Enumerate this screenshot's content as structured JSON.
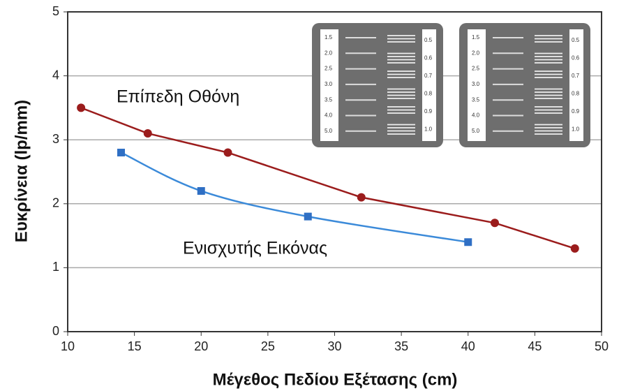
{
  "chart_data": {
    "type": "line",
    "xlabel": "Μέγεθος Πεδίου Εξέτασης (cm)",
    "ylabel": "Ευκρίνεια (lp/mm)",
    "xlim": [
      10,
      50
    ],
    "xticks": [
      10,
      15,
      20,
      25,
      30,
      35,
      40,
      45,
      50
    ],
    "ylim": [
      0,
      5
    ],
    "yticks": [
      0,
      1,
      2,
      3,
      4,
      5
    ],
    "grid": true,
    "series": [
      {
        "name": "Επίπεδη Οθόνη",
        "color": "#9b1c1c",
        "smooth": false,
        "x": [
          11,
          16,
          22,
          32,
          42,
          48
        ],
        "values": [
          3.5,
          3.1,
          2.8,
          2.1,
          1.7,
          1.3
        ]
      },
      {
        "name": "Ενισχυτής Εικόνας",
        "color": "#3b8ad9",
        "smooth": true,
        "x": [
          14,
          20,
          28,
          40
        ],
        "values": [
          2.8,
          2.2,
          1.8,
          1.4
        ]
      }
    ],
    "inset": {
      "left_labels": [
        "1.5",
        "2.0",
        "2.5",
        "3.0",
        "3.5",
        "4.0",
        "5.0"
      ],
      "right_labels": [
        "0.5",
        "0.6",
        "0.7",
        "0.8",
        "0.9",
        "1.0"
      ]
    }
  }
}
